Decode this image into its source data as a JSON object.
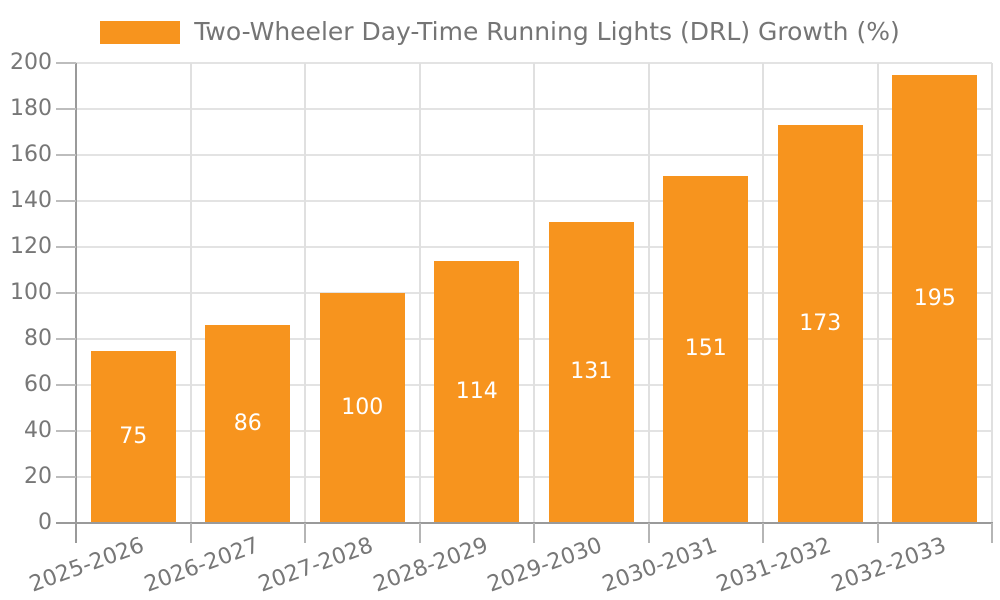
{
  "chart_data": {
    "type": "bar",
    "legend": "Two-Wheeler Day-Time Running Lights (DRL) Growth (%)",
    "categories": [
      "2025-2026",
      "2026-2027",
      "2027-2028",
      "2028-2029",
      "2029-2030",
      "2030-2031",
      "2031-2032",
      "2032-2033"
    ],
    "values": [
      75,
      86,
      100,
      114,
      131,
      151,
      173,
      195
    ],
    "value_labels": [
      "75",
      "86",
      "100",
      "114",
      "131",
      "151",
      "173",
      "195"
    ],
    "ylim": [
      0,
      200
    ],
    "ytick_step": 20,
    "ytick_labels": [
      "0",
      "20",
      "40",
      "60",
      "80",
      "100",
      "120",
      "140",
      "160",
      "180",
      "200"
    ],
    "grid": true,
    "legend_position": "top-center",
    "xlabel_rotation_deg": -20
  },
  "colors": {
    "bar": "#F7941E",
    "bar_value_text": "#ffffff",
    "axis_text": "#777777",
    "legend_text": "#757575",
    "spine": "#9a9a9a",
    "grid": "#e3e3e3",
    "background": "#ffffff"
  }
}
